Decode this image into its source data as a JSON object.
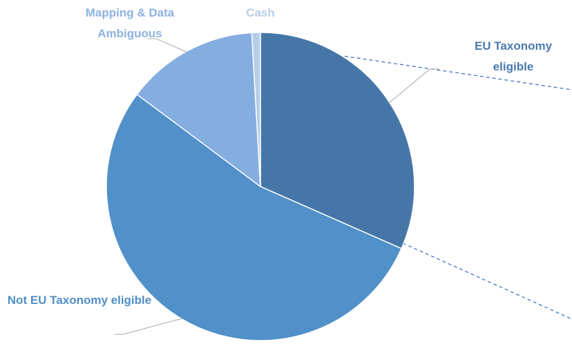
{
  "chart_data": {
    "type": "pie",
    "categories": [
      "EU Taxonomy eligible",
      "Not EU Taxonomy eligible",
      "Mapping & Data Ambiguous",
      "Cash"
    ],
    "values": [
      31.6,
      53.6,
      13.9,
      0.9
    ],
    "colors": [
      "#4676a8",
      "#5190c8",
      "#84ade0",
      "#b4cdea"
    ],
    "label_colors": [
      "#4a79ae",
      "#4f8fc7",
      "#8db3e2",
      "#b8cde8"
    ]
  }
}
